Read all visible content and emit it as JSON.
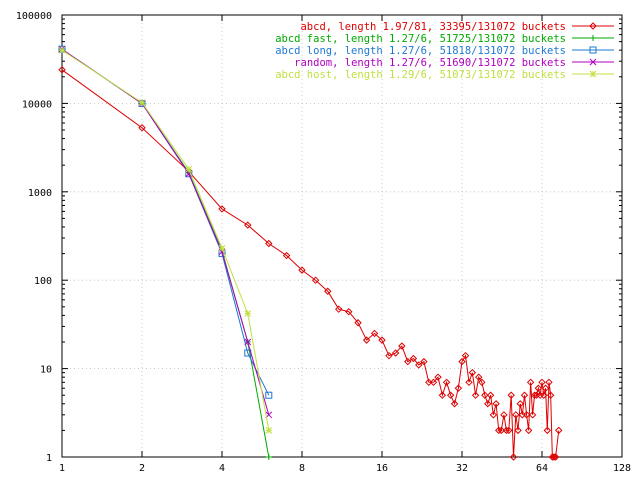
{
  "chart_data": {
    "type": "line",
    "title": "",
    "xlabel": "",
    "ylabel": "",
    "xscale": "log2",
    "yscale": "log10",
    "xlim": [
      1,
      128
    ],
    "ylim": [
      1,
      100000
    ],
    "grid": true,
    "legend_position": "top-right",
    "x_ticks": [
      1,
      2,
      4,
      8,
      16,
      32,
      64,
      128
    ],
    "y_ticks": [
      1,
      10,
      100,
      1000,
      10000,
      100000
    ],
    "x_tick_labels": [
      "1",
      "2",
      "4",
      "8",
      "16",
      "32",
      "64",
      "128"
    ],
    "y_tick_labels": [
      "1",
      "10",
      "100",
      "1000",
      "10000",
      "100000"
    ],
    "series": [
      {
        "name": "abcd, length 1.97/81, 33395/131072 buckets",
        "color": "#dd0000",
        "marker": "diamond",
        "points": [
          [
            1,
            24000
          ],
          [
            2,
            5300
          ],
          [
            3,
            1700
          ],
          [
            4,
            640
          ],
          [
            5,
            420
          ],
          [
            6,
            260
          ],
          [
            7,
            190
          ],
          [
            8,
            130
          ],
          [
            9,
            100
          ],
          [
            10,
            75
          ],
          [
            11,
            47
          ],
          [
            12,
            44
          ],
          [
            13,
            33
          ],
          [
            14,
            21
          ],
          [
            15,
            25
          ],
          [
            16,
            21
          ],
          [
            17,
            14
          ],
          [
            18,
            15
          ],
          [
            19,
            18
          ],
          [
            20,
            12
          ],
          [
            21,
            13
          ],
          [
            22,
            11
          ],
          [
            23,
            12
          ],
          [
            24,
            7
          ],
          [
            25,
            7
          ],
          [
            26,
            8
          ],
          [
            27,
            5
          ],
          [
            28,
            7
          ],
          [
            29,
            5
          ],
          [
            30,
            4
          ],
          [
            31,
            6
          ],
          [
            32,
            12
          ],
          [
            33,
            14
          ],
          [
            34,
            7
          ],
          [
            35,
            9
          ],
          [
            36,
            5
          ],
          [
            37,
            8
          ],
          [
            38,
            7
          ],
          [
            39,
            5
          ],
          [
            40,
            4
          ],
          [
            41,
            5
          ],
          [
            42,
            3
          ],
          [
            43,
            4
          ],
          [
            44,
            2
          ],
          [
            45,
            2
          ],
          [
            46,
            3
          ],
          [
            47,
            2
          ],
          [
            48,
            2
          ],
          [
            49,
            5
          ],
          [
            50,
            1
          ],
          [
            51,
            3
          ],
          [
            52,
            2
          ],
          [
            53,
            4
          ],
          [
            54,
            3
          ],
          [
            55,
            5
          ],
          [
            56,
            3
          ],
          [
            57,
            2
          ],
          [
            58,
            7
          ],
          [
            59,
            3
          ],
          [
            60,
            5
          ],
          [
            61,
            5
          ],
          [
            62,
            6
          ],
          [
            63,
            5
          ],
          [
            64,
            7
          ],
          [
            65,
            5
          ],
          [
            66,
            6
          ],
          [
            67,
            2
          ],
          [
            68,
            7
          ],
          [
            69,
            5
          ],
          [
            70,
            1
          ],
          [
            71,
            1
          ],
          [
            72,
            1
          ],
          [
            74,
            2
          ]
        ]
      },
      {
        "name": "abcd fast, length 1.27/6, 51725/131072 buckets",
        "color": "#00aa00",
        "marker": "plus",
        "points": [
          [
            1,
            41000
          ],
          [
            2,
            10000
          ],
          [
            3,
            1650
          ],
          [
            4,
            215
          ],
          [
            5,
            20
          ],
          [
            6,
            1
          ]
        ]
      },
      {
        "name": "abcd long, length 1.27/6, 51818/131072 buckets",
        "color": "#1e78d2",
        "marker": "square",
        "points": [
          [
            1,
            41000
          ],
          [
            2,
            10000
          ],
          [
            3,
            1600
          ],
          [
            4,
            200
          ],
          [
            5,
            15
          ],
          [
            6,
            5
          ]
        ]
      },
      {
        "name": "random, length 1.27/6, 51690/131072 buckets",
        "color": "#b000c0",
        "marker": "x",
        "points": [
          [
            1,
            41000
          ],
          [
            2,
            10000
          ],
          [
            3,
            1600
          ],
          [
            4,
            210
          ],
          [
            5,
            20
          ],
          [
            6,
            3
          ]
        ]
      },
      {
        "name": "abcd host, length 1.29/6, 51073/131072 buckets",
        "color": "#c0e040",
        "marker": "star",
        "points": [
          [
            1,
            40000
          ],
          [
            2,
            10200
          ],
          [
            3,
            1800
          ],
          [
            4,
            230
          ],
          [
            5,
            42
          ],
          [
            6,
            2
          ]
        ]
      }
    ]
  }
}
